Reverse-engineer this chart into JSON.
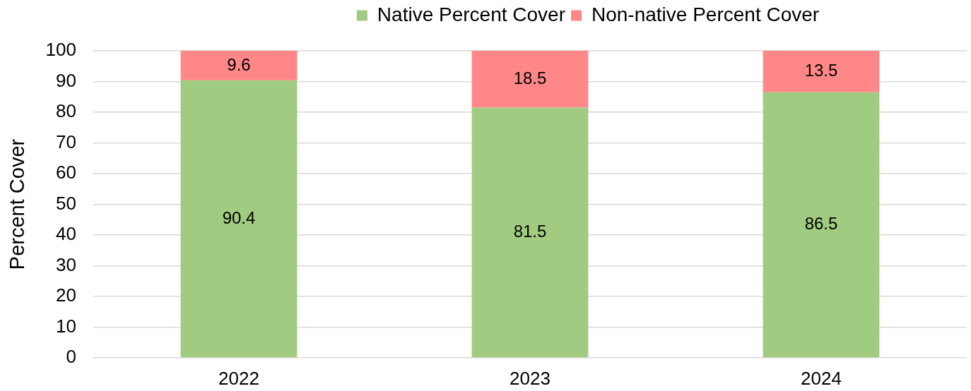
{
  "chart_data": {
    "type": "bar",
    "stacked": true,
    "categories": [
      "2022",
      "2023",
      "2024"
    ],
    "series": [
      {
        "name": "Native Percent Cover",
        "color": "#a0cb80",
        "values": [
          90.4,
          81.5,
          86.5
        ]
      },
      {
        "name": "Non-native Percent Cover",
        "color": "#ff8787",
        "values": [
          9.6,
          18.5,
          13.5
        ]
      }
    ],
    "ylabel": "Percent Cover",
    "ylim": [
      0,
      100
    ],
    "yticks": [
      0,
      10,
      20,
      30,
      40,
      50,
      60,
      70,
      80,
      90,
      100
    ],
    "grid": "y",
    "legend": "top",
    "data_labels": true
  }
}
